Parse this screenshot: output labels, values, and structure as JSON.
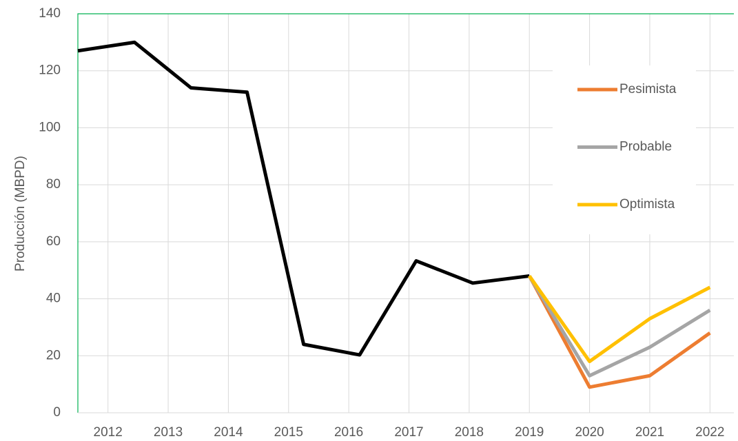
{
  "chart_data": {
    "type": "line",
    "y_label": "Producción (MBPD)",
    "xlim": [
      2011.5,
      2022.5
    ],
    "xticks": [
      2012,
      2013,
      2014,
      2015,
      2016,
      2017,
      2018,
      2019,
      2020,
      2021,
      2022
    ],
    "ylim": [
      0,
      140
    ],
    "yticks": [
      0,
      20,
      40,
      60,
      80,
      100,
      120,
      140
    ],
    "grid": true,
    "legend": "right",
    "series": [
      {
        "color": "#000000",
        "x": [
          2011.5,
          2012.44,
          2013.38,
          2014.31,
          2015.25,
          2016.18,
          2017.12,
          2018.06,
          2019.0
        ],
        "values": [
          127,
          130,
          114,
          112.5,
          24,
          20.3,
          53.3,
          45.5,
          48
        ]
      },
      {
        "name": "Pesimista",
        "color": "#ed7d31",
        "x": [
          2019,
          2020,
          2021,
          2022
        ],
        "values": [
          48,
          9,
          13,
          28
        ]
      },
      {
        "name": "Probable",
        "color": "#a5a5a5",
        "x": [
          2019,
          2020,
          2021,
          2022
        ],
        "values": [
          48,
          13,
          23,
          36
        ]
      },
      {
        "name": "Optimista",
        "color": "#ffc000",
        "x": [
          2019,
          2020,
          2021,
          2022
        ],
        "values": [
          48,
          18,
          33,
          44
        ]
      }
    ]
  }
}
